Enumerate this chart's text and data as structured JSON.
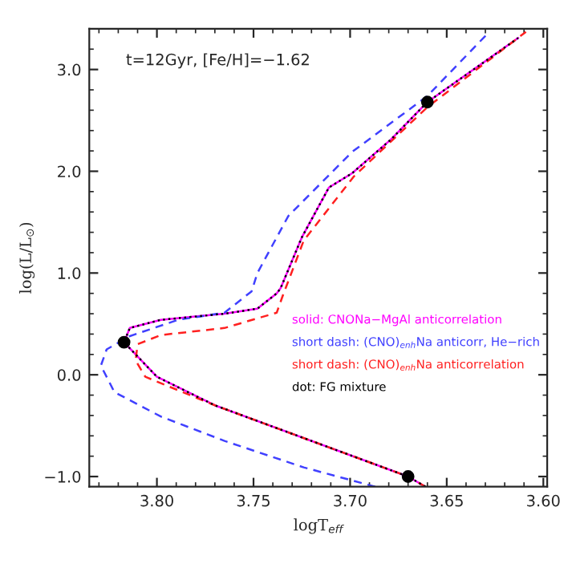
{
  "chart_data": {
    "type": "line",
    "xlabel": "logT$_{eff}$",
    "ylabel": "log(L/L$_{⊙}$)",
    "annotations": [
      {
        "text": "t=12Gyr, [Fe/H]=−1.62"
      }
    ],
    "xlim": [
      3.835,
      3.598
    ],
    "ylim": [
      -1.1,
      3.4
    ],
    "xticks": [
      {
        "value": 3.8,
        "label": "3.80"
      },
      {
        "value": 3.75,
        "label": "3.75"
      },
      {
        "value": 3.7,
        "label": "3.70"
      },
      {
        "value": 3.65,
        "label": "3.65"
      },
      {
        "value": 3.6,
        "label": "3.60"
      }
    ],
    "yticks": [
      {
        "value": -1.0,
        "label": "−1.0"
      },
      {
        "value": 0.0,
        "label": "0.0"
      },
      {
        "value": 1.0,
        "label": "1.0"
      },
      {
        "value": 2.0,
        "label": "2.0"
      },
      {
        "value": 3.0,
        "label": "3.0"
      }
    ],
    "legend": "center right",
    "grid": false,
    "series": [
      {
        "name": "solid: CNONa−MgAl anticorrelation",
        "color": "#ff00ff",
        "line_style": "solid",
        "x": [
          3.661,
          3.67,
          3.77,
          3.8,
          3.817,
          3.814,
          3.798,
          3.765,
          3.748,
          3.738,
          3.736,
          3.725,
          3.711,
          3.699,
          3.679,
          3.66,
          3.613
        ],
        "values": [
          -1.1,
          -1.0,
          -0.3,
          -0.02,
          0.32,
          0.46,
          0.54,
          0.6,
          0.65,
          0.8,
          0.85,
          1.35,
          1.84,
          1.98,
          2.31,
          2.68,
          3.31
        ]
      },
      {
        "name": "short dash: (CNO)$_{enh}$Na anticorr, He−rich",
        "color": "#4040ff",
        "line_style": "dashed",
        "x": [
          3.687,
          3.724,
          3.765,
          3.798,
          3.822,
          3.829,
          3.826,
          3.814,
          3.789,
          3.765,
          3.751,
          3.748,
          3.732,
          3.699,
          3.66,
          3.629
        ],
        "values": [
          -1.1,
          -0.91,
          -0.65,
          -0.41,
          -0.17,
          0.09,
          0.25,
          0.38,
          0.54,
          0.61,
          0.82,
          1.0,
          1.56,
          2.19,
          2.74,
          3.35
        ]
      },
      {
        "name": "short dash: (CNO)$_{enh}$Na anticorrelation",
        "color": "#ff2020",
        "line_style": "dashed",
        "x": [
          3.661,
          3.67,
          3.77,
          3.806,
          3.811,
          3.81,
          3.798,
          3.765,
          3.738,
          3.735,
          3.724,
          3.698,
          3.66,
          3.609
        ],
        "values": [
          -1.1,
          -1.0,
          -0.3,
          -0.02,
          0.14,
          0.3,
          0.39,
          0.46,
          0.61,
          0.77,
          1.32,
          1.95,
          2.63,
          3.37
        ]
      },
      {
        "name": "dot: FG mixture",
        "color": "#000000",
        "line_style": "dotted",
        "x": [
          3.661,
          3.67,
          3.77,
          3.8,
          3.817,
          3.814,
          3.798,
          3.765,
          3.748,
          3.738,
          3.736,
          3.725,
          3.711,
          3.699,
          3.679,
          3.66,
          3.613
        ],
        "values": [
          -1.1,
          -1.0,
          -0.3,
          -0.02,
          0.32,
          0.46,
          0.54,
          0.6,
          0.65,
          0.8,
          0.85,
          1.35,
          1.84,
          1.98,
          2.31,
          2.68,
          3.31
        ]
      },
      {
        "type": "scatter",
        "color": "#000000",
        "marker": "circle",
        "x": [
          3.817,
          3.67,
          3.66
        ],
        "values": [
          0.32,
          -1.0,
          2.68
        ]
      }
    ]
  }
}
